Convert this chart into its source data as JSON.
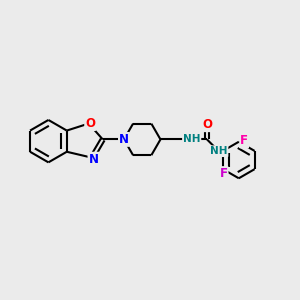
{
  "background_color": "#ebebeb",
  "bond_color": "#000000",
  "bond_width": 1.5,
  "atom_colors": {
    "N": "#0000ff",
    "O": "#ff0000",
    "F_top": "#ff00aa",
    "F_bot": "#cc00cc",
    "NH": "#008080",
    "C": "#000000"
  },
  "fig_width": 3.0,
  "fig_height": 3.0,
  "dpi": 100
}
